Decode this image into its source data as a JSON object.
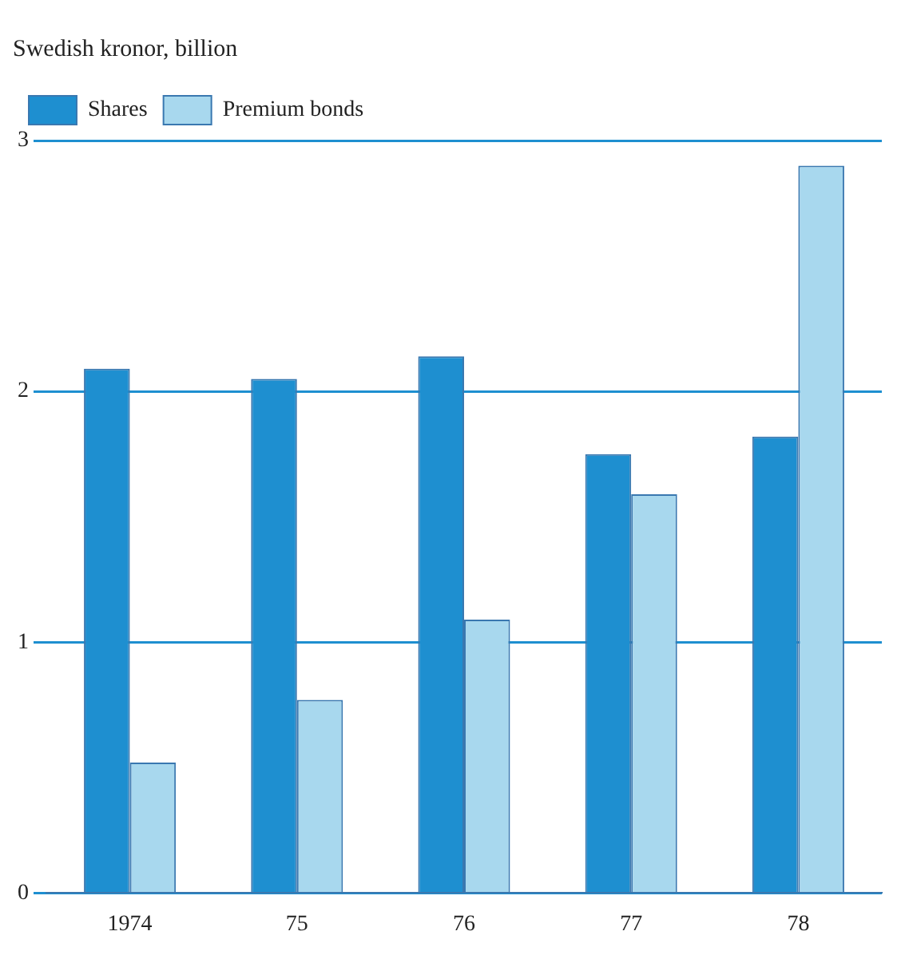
{
  "chart_data": {
    "type": "bar",
    "title": "Swedish kronor, billion",
    "categories": [
      "1974",
      "75",
      "76",
      "77",
      "78"
    ],
    "series": [
      {
        "name": "Shares",
        "color": "#1e8fd0",
        "values": [
          2.09,
          2.05,
          2.14,
          1.75,
          1.82
        ]
      },
      {
        "name": "Premium bonds",
        "color": "#a8d8ee",
        "values": [
          0.52,
          0.77,
          1.09,
          1.59,
          2.9
        ]
      }
    ],
    "ylim": [
      0,
      3
    ],
    "yticks": [
      0,
      1,
      2,
      3
    ],
    "grid": "y",
    "legend": "top left"
  }
}
